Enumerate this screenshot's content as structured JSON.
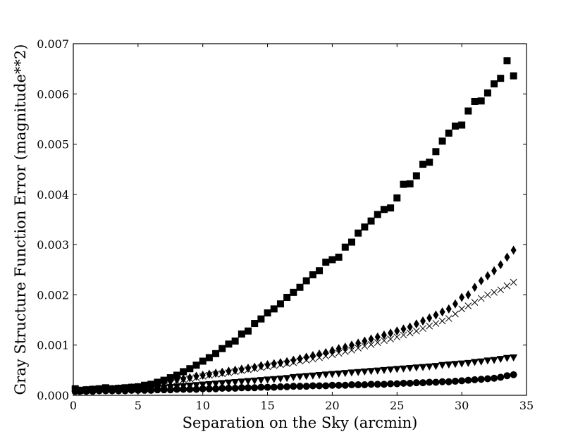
{
  "chart_data": {
    "type": "scatter",
    "xlabel": "Separation on the Sky (arcmin)",
    "ylabel": "Gray Structure Function Error (magnitude**2)",
    "xlim": [
      0,
      35
    ],
    "ylim": [
      0,
      0.007
    ],
    "xticks": [
      0,
      5,
      10,
      15,
      20,
      25,
      30,
      35
    ],
    "xtick_labels": [
      "0",
      "5",
      "10",
      "15",
      "20",
      "25",
      "30",
      "35"
    ],
    "yticks": [
      0,
      0.001,
      0.002,
      0.003,
      0.004,
      0.005,
      0.006,
      0.007
    ],
    "ytick_labels": [
      "0.000",
      "0.001",
      "0.002",
      "0.003",
      "0.004",
      "0.005",
      "0.006",
      "0.007"
    ],
    "grid": false,
    "legend": false,
    "series": [
      {
        "marker": "square",
        "x": [
          0.15,
          0.5,
          1.0,
          1.5,
          2.0,
          2.5,
          3.0,
          3.5,
          4.0,
          4.5,
          5.0,
          5.5,
          6.0,
          6.5,
          7.0,
          7.5,
          8.0,
          8.5,
          9.0,
          9.5,
          10.0,
          10.5,
          11.0,
          11.5,
          12.0,
          12.5,
          13.0,
          13.5,
          14.0,
          14.5,
          15.0,
          15.5,
          16.0,
          16.5,
          17.0,
          17.5,
          18.0,
          18.5,
          19.0,
          19.5,
          20.0,
          20.5,
          21.0,
          21.5,
          22.0,
          22.5,
          23.0,
          23.5,
          24.0,
          24.5,
          25.0,
          25.5,
          26.0,
          26.5,
          27.0,
          27.5,
          28.0,
          28.5,
          29.0,
          29.5,
          30.0,
          30.5,
          31.0,
          31.5,
          32.0,
          32.5,
          33.0,
          33.5,
          34.0
        ],
        "y": [
          0.00013,
          0.0001,
          0.00011,
          0.00012,
          0.00013,
          0.00015,
          0.00013,
          0.00014,
          0.00015,
          0.00016,
          0.00017,
          0.0002,
          0.00022,
          0.00026,
          0.0003,
          0.00035,
          0.0004,
          0.00047,
          0.00053,
          0.0006,
          0.00068,
          0.00075,
          0.00083,
          0.00093,
          0.00102,
          0.00108,
          0.00122,
          0.00128,
          0.00143,
          0.00152,
          0.00164,
          0.00172,
          0.00182,
          0.00195,
          0.00205,
          0.00215,
          0.00228,
          0.0024,
          0.00248,
          0.00265,
          0.0027,
          0.00275,
          0.00295,
          0.00305,
          0.00323,
          0.00335,
          0.00347,
          0.0036,
          0.0037,
          0.00373,
          0.00393,
          0.0042,
          0.00421,
          0.00437,
          0.0046,
          0.00464,
          0.00485,
          0.00506,
          0.00522,
          0.00536,
          0.00538,
          0.00566,
          0.00585,
          0.00586,
          0.00602,
          0.0062,
          0.00631,
          0.00666,
          0.00636
        ]
      },
      {
        "marker": "diamond",
        "x": [
          0.15,
          0.5,
          1.0,
          1.5,
          2.0,
          2.5,
          3.0,
          3.5,
          4.0,
          4.5,
          5.0,
          5.5,
          6.0,
          6.5,
          7.0,
          7.5,
          8.0,
          8.5,
          9.0,
          9.5,
          10.0,
          10.5,
          11.0,
          11.5,
          12.0,
          12.5,
          13.0,
          13.5,
          14.0,
          14.5,
          15.0,
          15.5,
          16.0,
          16.5,
          17.0,
          17.5,
          18.0,
          18.5,
          19.0,
          19.5,
          20.0,
          20.5,
          21.0,
          21.5,
          22.0,
          22.5,
          23.0,
          23.5,
          24.0,
          24.5,
          25.0,
          25.5,
          26.0,
          26.5,
          27.0,
          27.5,
          28.0,
          28.5,
          29.0,
          29.5,
          30.0,
          30.5,
          31.0,
          31.5,
          32.0,
          32.5,
          33.0,
          33.5,
          34.0
        ],
        "y": [
          0.0001,
          9e-05,
          0.0001,
          0.00011,
          0.00012,
          0.00012,
          0.00012,
          0.00013,
          0.00014,
          0.00015,
          0.00016,
          0.00017,
          0.0002,
          0.00022,
          0.00025,
          0.00028,
          0.00031,
          0.00033,
          0.00035,
          0.00038,
          0.0004,
          0.00042,
          0.00044,
          0.00046,
          0.00048,
          0.0005,
          0.00052,
          0.00054,
          0.00056,
          0.00059,
          0.00061,
          0.00063,
          0.00065,
          0.00067,
          0.0007,
          0.00073,
          0.00076,
          0.00079,
          0.00082,
          0.00085,
          0.00089,
          0.00093,
          0.00096,
          0.001,
          0.00104,
          0.00108,
          0.00112,
          0.00116,
          0.0012,
          0.00124,
          0.00128,
          0.00132,
          0.00136,
          0.00142,
          0.00148,
          0.00154,
          0.0016,
          0.00166,
          0.00172,
          0.00182,
          0.00195,
          0.002,
          0.00215,
          0.00228,
          0.00238,
          0.00248,
          0.0026,
          0.00275,
          0.00289
        ]
      },
      {
        "marker": "x",
        "x": [
          0.15,
          0.5,
          1.0,
          1.5,
          2.0,
          2.5,
          3.0,
          3.5,
          4.0,
          4.5,
          5.0,
          5.5,
          6.0,
          6.5,
          7.0,
          7.5,
          8.0,
          8.5,
          9.0,
          9.5,
          10.0,
          10.5,
          11.0,
          11.5,
          12.0,
          12.5,
          13.0,
          13.5,
          14.0,
          14.5,
          15.0,
          15.5,
          16.0,
          16.5,
          17.0,
          17.5,
          18.0,
          18.5,
          19.0,
          19.5,
          20.0,
          20.5,
          21.0,
          21.5,
          22.0,
          22.5,
          23.0,
          23.5,
          24.0,
          24.5,
          25.0,
          25.5,
          26.0,
          26.5,
          27.0,
          27.5,
          28.0,
          28.5,
          29.0,
          29.5,
          30.0,
          30.5,
          31.0,
          31.5,
          32.0,
          32.5,
          33.0,
          33.5,
          34.0
        ],
        "y": [
          0.0001,
          9e-05,
          0.0001,
          0.00011,
          0.00012,
          0.00012,
          0.00012,
          0.00013,
          0.00014,
          0.00015,
          0.00016,
          0.00017,
          0.00019,
          0.0002,
          0.00022,
          0.00025,
          0.00028,
          0.00031,
          0.00033,
          0.00035,
          0.00038,
          0.0004,
          0.00042,
          0.00043,
          0.00045,
          0.00047,
          0.00049,
          0.00051,
          0.00053,
          0.00055,
          0.00057,
          0.00059,
          0.00061,
          0.00063,
          0.00065,
          0.00068,
          0.0007,
          0.00072,
          0.00075,
          0.00078,
          0.00081,
          0.00084,
          0.00087,
          0.0009,
          0.00094,
          0.00098,
          0.00101,
          0.00105,
          0.00109,
          0.00112,
          0.00116,
          0.0012,
          0.00124,
          0.00128,
          0.00133,
          0.00138,
          0.00143,
          0.00148,
          0.00153,
          0.00162,
          0.00172,
          0.00178,
          0.00185,
          0.00193,
          0.002,
          0.00205,
          0.0021,
          0.00218,
          0.00225
        ]
      },
      {
        "marker": "triangle-down",
        "x": [
          0.15,
          0.5,
          1.0,
          1.5,
          2.0,
          2.5,
          3.0,
          3.5,
          4.0,
          4.5,
          5.0,
          5.5,
          6.0,
          6.5,
          7.0,
          7.5,
          8.0,
          8.5,
          9.0,
          9.5,
          10.0,
          10.5,
          11.0,
          11.5,
          12.0,
          12.5,
          13.0,
          13.5,
          14.0,
          14.5,
          15.0,
          15.5,
          16.0,
          16.5,
          17.0,
          17.5,
          18.0,
          18.5,
          19.0,
          19.5,
          20.0,
          20.5,
          21.0,
          21.5,
          22.0,
          22.5,
          23.0,
          23.5,
          24.0,
          24.5,
          25.0,
          25.5,
          26.0,
          26.5,
          27.0,
          27.5,
          28.0,
          28.5,
          29.0,
          29.5,
          30.0,
          30.5,
          31.0,
          31.5,
          32.0,
          32.5,
          33.0,
          33.5,
          34.0
        ],
        "y": [
          9e-05,
          8e-05,
          9e-05,
          9e-05,
          0.0001,
          0.0001,
          0.0001,
          0.0001,
          0.00011,
          0.00011,
          0.00012,
          0.00012,
          0.00013,
          0.00014,
          0.00015,
          0.00016,
          0.00017,
          0.00018,
          0.00019,
          0.0002,
          0.00021,
          0.00022,
          0.00023,
          0.00024,
          0.00025,
          0.00026,
          0.00027,
          0.00028,
          0.00029,
          0.0003,
          0.00031,
          0.00032,
          0.00033,
          0.00034,
          0.00036,
          0.00037,
          0.00038,
          0.00039,
          0.0004,
          0.00041,
          0.00042,
          0.00043,
          0.00044,
          0.00045,
          0.00046,
          0.00047,
          0.00048,
          0.00049,
          0.0005,
          0.00051,
          0.00052,
          0.00053,
          0.00054,
          0.00055,
          0.00056,
          0.00057,
          0.00058,
          0.0006,
          0.00061,
          0.00062,
          0.00063,
          0.00064,
          0.00066,
          0.00067,
          0.00069,
          0.0007,
          0.00072,
          0.00074,
          0.00075
        ]
      },
      {
        "marker": "circle",
        "x": [
          0.15,
          0.5,
          1.0,
          1.5,
          2.0,
          2.5,
          3.0,
          3.5,
          4.0,
          4.5,
          5.0,
          5.5,
          6.0,
          6.5,
          7.0,
          7.5,
          8.0,
          8.5,
          9.0,
          9.5,
          10.0,
          10.5,
          11.0,
          11.5,
          12.0,
          12.5,
          13.0,
          13.5,
          14.0,
          14.5,
          15.0,
          15.5,
          16.0,
          16.5,
          17.0,
          17.5,
          18.0,
          18.5,
          19.0,
          19.5,
          20.0,
          20.5,
          21.0,
          21.5,
          22.0,
          22.5,
          23.0,
          23.5,
          24.0,
          24.5,
          25.0,
          25.5,
          26.0,
          26.5,
          27.0,
          27.5,
          28.0,
          28.5,
          29.0,
          29.5,
          30.0,
          30.5,
          31.0,
          31.5,
          32.0,
          32.5,
          33.0,
          33.5,
          34.0
        ],
        "y": [
          8e-05,
          8e-05,
          8e-05,
          8e-05,
          9e-05,
          9e-05,
          9e-05,
          9e-05,
          9e-05,
          0.0001,
          0.0001,
          0.0001,
          0.0001,
          0.00011,
          0.00011,
          0.00011,
          0.00012,
          0.00012,
          0.00012,
          0.00012,
          0.00013,
          0.00013,
          0.00013,
          0.00014,
          0.00014,
          0.00014,
          0.00015,
          0.00015,
          0.00015,
          0.00016,
          0.00016,
          0.00016,
          0.00017,
          0.00017,
          0.00018,
          0.00018,
          0.00018,
          0.00019,
          0.00019,
          0.00019,
          0.0002,
          0.0002,
          0.0002,
          0.00021,
          0.00021,
          0.00021,
          0.00022,
          0.00022,
          0.00022,
          0.00023,
          0.00023,
          0.00024,
          0.00024,
          0.00025,
          0.00025,
          0.00026,
          0.00026,
          0.00027,
          0.00027,
          0.00028,
          0.00029,
          0.0003,
          0.00031,
          0.00032,
          0.00033,
          0.00034,
          0.00036,
          0.00039,
          0.00041
        ]
      }
    ]
  }
}
